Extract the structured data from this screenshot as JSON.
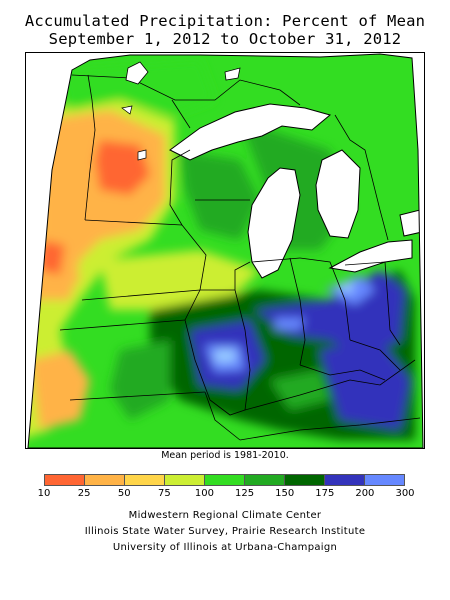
{
  "title": {
    "line1": "Accumulated Precipitation: Percent of Mean",
    "line2": "September 1, 2012 to October 31, 2012"
  },
  "note": "Mean period is 1981-2010.",
  "legend": {
    "colors": [
      "#ff6633",
      "#ffb347",
      "#ffd54a",
      "#ccee33",
      "#33dd22",
      "#22aa22",
      "#006600",
      "#3333bb",
      "#6688ff",
      "#99ccff"
    ],
    "ticks": [
      "10",
      "25",
      "50",
      "75",
      "100",
      "125",
      "150",
      "175",
      "200",
      "300"
    ]
  },
  "credits": [
    "Midwestern Regional Climate Center",
    "Illinois State Water Survey, Prairie Research Institute",
    "University of Illinois at Urbana-Champaign"
  ]
}
